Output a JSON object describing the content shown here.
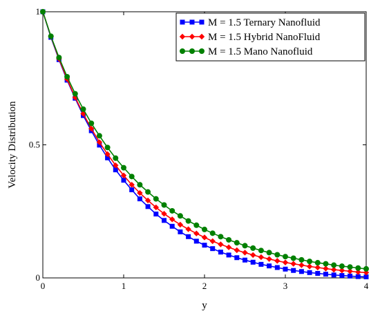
{
  "chart_data": {
    "type": "line",
    "title": "",
    "xlabel": "y",
    "ylabel": "Velocity  Distribution",
    "xlim": [
      0,
      4
    ],
    "ylim": [
      0,
      1
    ],
    "x_ticks": [
      {
        "value": 0,
        "label": "0"
      },
      {
        "value": 1,
        "label": "1"
      },
      {
        "value": 2,
        "label": "2"
      },
      {
        "value": 3,
        "label": "3"
      },
      {
        "value": 4,
        "label": "4"
      }
    ],
    "y_ticks": [
      {
        "value": 0,
        "label": "0"
      },
      {
        "value": 0.5,
        "label": "0.5"
      },
      {
        "value": 1,
        "label": "1"
      }
    ],
    "grid": false,
    "legend_position": "top-right",
    "series": [
      {
        "name": "M = 1.5 Ternary Nanofluid",
        "color": "#0000ff",
        "marker": "square",
        "x": [
          0,
          0.1,
          0.2,
          0.3,
          0.4,
          0.5,
          0.6,
          0.7,
          0.8,
          0.9,
          1.0,
          1.1,
          1.2,
          1.3,
          1.4,
          1.5,
          1.6,
          1.7,
          1.8,
          1.9,
          2.0,
          2.1,
          2.2,
          2.3,
          2.4,
          2.5,
          2.6,
          2.7,
          2.8,
          2.9,
          3.0,
          3.1,
          3.2,
          3.3,
          3.4,
          3.5,
          3.6,
          3.7,
          3.8,
          3.9,
          4.0
        ],
        "y": [
          1.0,
          0.904,
          0.82,
          0.743,
          0.675,
          0.61,
          0.553,
          0.499,
          0.451,
          0.406,
          0.367,
          0.331,
          0.297,
          0.268,
          0.24,
          0.216,
          0.194,
          0.173,
          0.155,
          0.138,
          0.123,
          0.11,
          0.097,
          0.086,
          0.076,
          0.067,
          0.059,
          0.051,
          0.045,
          0.039,
          0.033,
          0.028,
          0.024,
          0.02,
          0.017,
          0.014,
          0.011,
          0.009,
          0.007,
          0.005,
          0.004
        ]
      },
      {
        "name": "M = 1.5 Hybrid NanoFluid",
        "color": "#ff0000",
        "marker": "diamond",
        "x": [
          0,
          0.1,
          0.2,
          0.3,
          0.4,
          0.5,
          0.6,
          0.7,
          0.8,
          0.9,
          1.0,
          1.1,
          1.2,
          1.3,
          1.4,
          1.5,
          1.6,
          1.7,
          1.8,
          1.9,
          2.0,
          2.1,
          2.2,
          2.3,
          2.4,
          2.5,
          2.6,
          2.7,
          2.8,
          2.9,
          3.0,
          3.1,
          3.2,
          3.3,
          3.4,
          3.5,
          3.6,
          3.7,
          3.8,
          3.9,
          4.0
        ],
        "y": [
          1.0,
          0.907,
          0.823,
          0.747,
          0.678,
          0.617,
          0.561,
          0.51,
          0.465,
          0.423,
          0.385,
          0.35,
          0.319,
          0.291,
          0.265,
          0.241,
          0.22,
          0.2,
          0.183,
          0.167,
          0.152,
          0.138,
          0.126,
          0.115,
          0.104,
          0.095,
          0.086,
          0.078,
          0.071,
          0.064,
          0.058,
          0.053,
          0.048,
          0.043,
          0.039,
          0.035,
          0.031,
          0.028,
          0.025,
          0.022,
          0.02
        ]
      },
      {
        "name": "M = 1.5 Mano Nanofluid",
        "color": "#008000",
        "marker": "circle",
        "x": [
          0,
          0.1,
          0.2,
          0.3,
          0.4,
          0.5,
          0.6,
          0.7,
          0.8,
          0.9,
          1.0,
          1.1,
          1.2,
          1.3,
          1.4,
          1.5,
          1.6,
          1.7,
          1.8,
          1.9,
          2.0,
          2.1,
          2.2,
          2.3,
          2.4,
          2.5,
          2.6,
          2.7,
          2.8,
          2.9,
          3.0,
          3.1,
          3.2,
          3.3,
          3.4,
          3.5,
          3.6,
          3.7,
          3.8,
          3.9,
          4.0
        ],
        "y": [
          1.0,
          0.908,
          0.828,
          0.756,
          0.692,
          0.634,
          0.581,
          0.534,
          0.49,
          0.45,
          0.414,
          0.381,
          0.35,
          0.323,
          0.297,
          0.274,
          0.252,
          0.233,
          0.214,
          0.198,
          0.182,
          0.168,
          0.155,
          0.143,
          0.132,
          0.121,
          0.112,
          0.103,
          0.095,
          0.087,
          0.08,
          0.074,
          0.068,
          0.062,
          0.057,
          0.053,
          0.048,
          0.044,
          0.041,
          0.037,
          0.034
        ]
      }
    ]
  }
}
